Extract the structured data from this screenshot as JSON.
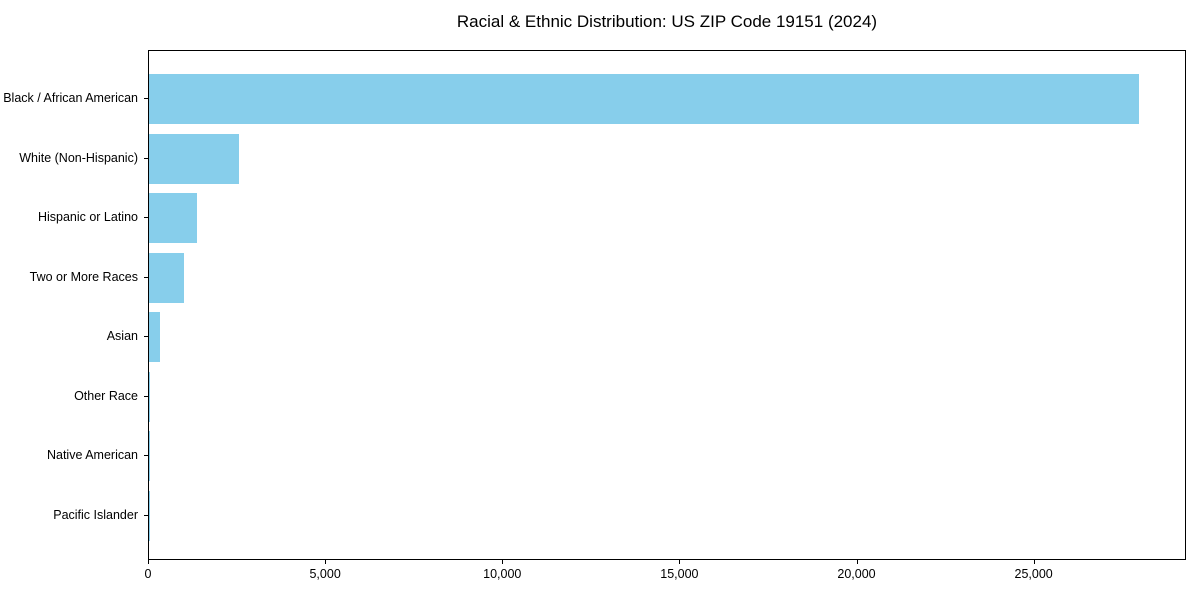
{
  "chart_data": {
    "type": "bar",
    "orientation": "horizontal",
    "title": "Racial & Ethnic Distribution: US ZIP Code 19151 (2024)",
    "xlabel": "",
    "ylabel": "",
    "categories": [
      "Black / African American",
      "White (Non-Hispanic)",
      "Hispanic or Latino",
      "Two or More Races",
      "Asian",
      "Other Race",
      "Native American",
      "Pacific Islander"
    ],
    "values": [
      27950,
      2550,
      1350,
      990,
      300,
      25,
      12,
      6
    ],
    "xlim": [
      0,
      29300
    ],
    "xticks": [
      0,
      5000,
      10000,
      15000,
      20000,
      25000
    ],
    "xtick_labels": [
      "0",
      "5,000",
      "10,000",
      "15,000",
      "20,000",
      "25,000"
    ],
    "bar_color": "#87CEEB",
    "background_color": "#ffffff",
    "grid": false,
    "legend": "none"
  }
}
